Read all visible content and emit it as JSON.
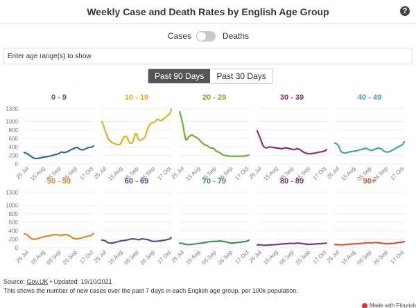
{
  "header": {
    "title": "Weekly Case and Death Rates by English Age Group",
    "help_symbol": "?"
  },
  "toggle": {
    "left_label": "Cases",
    "right_label": "Deaths",
    "state": "cases"
  },
  "filter": {
    "placeholder": "Enter age range(s) to show",
    "value": ""
  },
  "period_buttons": [
    {
      "label": "Past 90 Days",
      "active": true
    },
    {
      "label": "Past 30 Days",
      "active": false
    }
  ],
  "footer": {
    "source_prefix": "Source: ",
    "source_link": "Gov.UK",
    "source_suffix": " • Updated: 19/10/2021",
    "description": "This shows the number of new cases over the past 7 days in each English age group, per 100k population.",
    "badge": "Made with Flourish"
  },
  "chart_data": {
    "type": "line",
    "title": "Weekly Case and Death Rates by English Age Group",
    "ylim": [
      0,
      1300
    ],
    "yticks": [
      0,
      200,
      400,
      600,
      800,
      1000,
      1300
    ],
    "x": [
      "2021-07-19",
      "2021-07-23",
      "2021-07-27",
      "2021-07-31",
      "2021-08-04",
      "2021-08-08",
      "2021-08-12",
      "2021-08-16",
      "2021-08-20",
      "2021-08-24",
      "2021-08-28",
      "2021-09-01",
      "2021-09-05",
      "2021-09-09",
      "2021-09-13",
      "2021-09-17",
      "2021-09-21",
      "2021-09-25",
      "2021-09-29",
      "2021-10-03",
      "2021-10-07",
      "2021-10-11",
      "2021-10-15",
      "2021-10-17"
    ],
    "xticks": [
      "25 Jul",
      "15 Aug",
      "05 Sep",
      "26 Sep",
      "17 Oct"
    ],
    "grid": true,
    "series": [
      {
        "name": "0 - 9",
        "color": "#2b6a99",
        "values": [
          270,
          240,
          190,
          140,
          130,
          140,
          160,
          170,
          180,
          200,
          220,
          240,
          280,
          270,
          290,
          330,
          360,
          390,
          350,
          330,
          360,
          390,
          400,
          430
        ]
      },
      {
        "name": "10 - 19",
        "color": "#e2b11d",
        "values": [
          1000,
          800,
          600,
          520,
          480,
          460,
          470,
          620,
          640,
          500,
          520,
          720,
          560,
          580,
          640,
          860,
          960,
          980,
          1050,
          1020,
          1060,
          1120,
          1180,
          1290
        ]
      },
      {
        "name": "20 - 29",
        "color": "#6ab12e",
        "values": [
          1230,
          950,
          580,
          640,
          680,
          640,
          600,
          520,
          460,
          430,
          380,
          370,
          300,
          270,
          220,
          200,
          190,
          180,
          185,
          180,
          185,
          190,
          200,
          210
        ]
      },
      {
        "name": "30 - 39",
        "color": "#8b2f74",
        "values": [
          780,
          600,
          420,
          380,
          400,
          390,
          380,
          370,
          360,
          380,
          370,
          350,
          340,
          360,
          330,
          280,
          250,
          240,
          250,
          260,
          280,
          290,
          310,
          340
        ]
      },
      {
        "name": "40 - 49",
        "color": "#3aa6a6",
        "values": [
          490,
          450,
          300,
          260,
          270,
          290,
          300,
          310,
          330,
          350,
          370,
          340,
          320,
          350,
          370,
          360,
          300,
          280,
          300,
          340,
          380,
          420,
          460,
          520
        ]
      },
      {
        "name": "50 - 59",
        "color": "#e68724",
        "values": [
          330,
          300,
          230,
          200,
          210,
          230,
          250,
          270,
          280,
          300,
          310,
          300,
          290,
          310,
          300,
          270,
          220,
          210,
          220,
          240,
          260,
          280,
          300,
          340
        ]
      },
      {
        "name": "60 - 69",
        "color": "#5e4693",
        "values": [
          180,
          165,
          120,
          110,
          120,
          140,
          160,
          170,
          180,
          200,
          210,
          200,
          190,
          210,
          200,
          190,
          160,
          150,
          155,
          165,
          175,
          190,
          210,
          240
        ]
      },
      {
        "name": "70 - 79",
        "color": "#3b9552",
        "values": [
          110,
          100,
          80,
          75,
          80,
          90,
          100,
          110,
          120,
          135,
          145,
          150,
          150,
          160,
          150,
          140,
          120,
          110,
          115,
          125,
          135,
          145,
          160,
          180
        ]
      },
      {
        "name": "80 - 89",
        "color": "#7d3476",
        "values": [
          70,
          68,
          60,
          60,
          65,
          70,
          75,
          80,
          90,
          95,
          100,
          105,
          100,
          110,
          105,
          95,
          85,
          80,
          85,
          90,
          95,
          100,
          105,
          110
        ]
      },
      {
        "name": "90+",
        "color": "#d8542f",
        "values": [
          75,
          72,
          70,
          72,
          78,
          85,
          90,
          95,
          100,
          105,
          115,
          120,
          115,
          125,
          120,
          110,
          100,
          95,
          100,
          105,
          115,
          125,
          135,
          145
        ]
      }
    ]
  }
}
